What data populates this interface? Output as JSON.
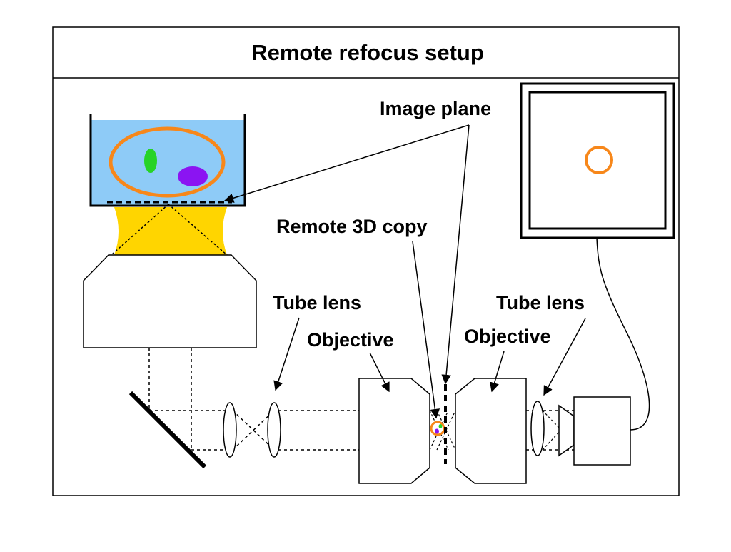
{
  "title": "Remote refocus setup",
  "labels": {
    "image_plane": "Image plane",
    "remote_copy": "Remote 3D copy",
    "tube_lens_left": "Tube lens",
    "objective_left": "Objective",
    "objective_right": "Objective",
    "tube_lens_right": "Tube lens"
  },
  "colors": {
    "sample_medium": "#8ecbf7",
    "immersion": "#ffd500",
    "cell_outline": "#f7871a",
    "green_feature": "#27d327",
    "purple_feature": "#8b14f2",
    "outline": "#000000"
  }
}
